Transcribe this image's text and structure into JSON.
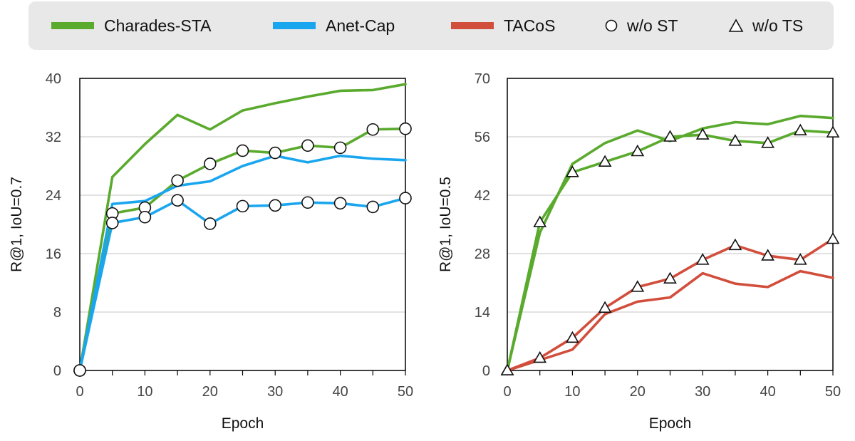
{
  "legend": {
    "charades": "Charades-STA",
    "anet": "Anet-Cap",
    "tacos": "TACoS",
    "wost": "w/o ST",
    "wots": "w/o TS"
  },
  "colors": {
    "charades": "#5aaa2e",
    "anet": "#1aa6ef",
    "tacos": "#d24e3c",
    "grid": "#d9d9d9",
    "marker_fill": "#ffffff",
    "marker_stroke": "#111111"
  },
  "chart_data": [
    {
      "type": "line",
      "xlabel": "Epoch",
      "ylabel": "R@1, IoU=0.7",
      "xlim": [
        0,
        50
      ],
      "ylim": [
        0,
        40
      ],
      "xticks": [
        0,
        10,
        20,
        30,
        40,
        50
      ],
      "yticks": [
        0,
        8,
        16,
        24,
        32,
        40
      ],
      "grid": true,
      "series": [
        {
          "name": "Charades-STA",
          "color_key": "charades",
          "marker": "none",
          "x": [
            0,
            5,
            10,
            15,
            20,
            25,
            30,
            35,
            40,
            45,
            50
          ],
          "y": [
            0,
            26.5,
            31.0,
            35.0,
            33.0,
            35.6,
            36.6,
            37.5,
            38.3,
            38.4,
            39.2
          ]
        },
        {
          "name": "Charades-STA",
          "color_key": "charades",
          "marker": "circle",
          "x": [
            0,
            5,
            10,
            15,
            20,
            25,
            30,
            35,
            40,
            45,
            50
          ],
          "y": [
            0,
            21.5,
            22.3,
            26.0,
            28.3,
            30.1,
            29.8,
            30.8,
            30.5,
            33.0,
            33.1
          ]
        },
        {
          "name": "Anet-Cap",
          "color_key": "anet",
          "marker": "none",
          "x": [
            0,
            5,
            10,
            15,
            20,
            25,
            30,
            35,
            40,
            45,
            50
          ],
          "y": [
            0,
            22.8,
            23.2,
            25.3,
            25.9,
            28.0,
            29.4,
            28.5,
            29.4,
            29.0,
            28.8
          ]
        },
        {
          "name": "Anet-Cap",
          "color_key": "anet",
          "marker": "circle",
          "x": [
            0,
            5,
            10,
            15,
            20,
            25,
            30,
            35,
            40,
            45,
            50
          ],
          "y": [
            0,
            20.2,
            21.0,
            23.3,
            20.1,
            22.5,
            22.6,
            23.0,
            22.9,
            22.4,
            23.6
          ]
        }
      ]
    },
    {
      "type": "line",
      "xlabel": "Epoch",
      "ylabel": "R@1, IoU=0.5",
      "xlim": [
        0,
        50
      ],
      "ylim": [
        0,
        70
      ],
      "xticks": [
        0,
        10,
        20,
        30,
        40,
        50
      ],
      "yticks": [
        0,
        14,
        28,
        42,
        56,
        70
      ],
      "grid": true,
      "series": [
        {
          "name": "Charades-STA",
          "color_key": "charades",
          "marker": "none",
          "x": [
            0,
            5,
            10,
            15,
            20,
            25,
            30,
            35,
            40,
            45,
            50
          ],
          "y": [
            0,
            33.0,
            49.5,
            54.5,
            57.5,
            55.0,
            58.0,
            59.5,
            59.0,
            61.0,
            60.5
          ]
        },
        {
          "name": "Charades-STA",
          "color_key": "charades",
          "marker": "triangle",
          "x": [
            0,
            5,
            10,
            15,
            20,
            25,
            30,
            35,
            40,
            45,
            50
          ],
          "y": [
            0,
            35.5,
            47.5,
            50.0,
            52.5,
            56.0,
            56.5,
            55.0,
            54.5,
            57.5,
            57.0
          ]
        },
        {
          "name": "TACoS",
          "color_key": "tacos",
          "marker": "none",
          "x": [
            0,
            5,
            10,
            15,
            20,
            25,
            30,
            35,
            40,
            45,
            50
          ],
          "y": [
            0,
            2.5,
            5.0,
            13.5,
            16.5,
            17.5,
            23.3,
            20.8,
            20.0,
            23.8,
            22.2
          ]
        },
        {
          "name": "TACoS",
          "color_key": "tacos",
          "marker": "triangle",
          "x": [
            0,
            5,
            10,
            15,
            20,
            25,
            30,
            35,
            40,
            45,
            50
          ],
          "y": [
            0,
            3.0,
            7.8,
            15.0,
            20.0,
            22.0,
            26.5,
            30.0,
            27.5,
            26.5,
            31.5
          ]
        }
      ]
    }
  ]
}
